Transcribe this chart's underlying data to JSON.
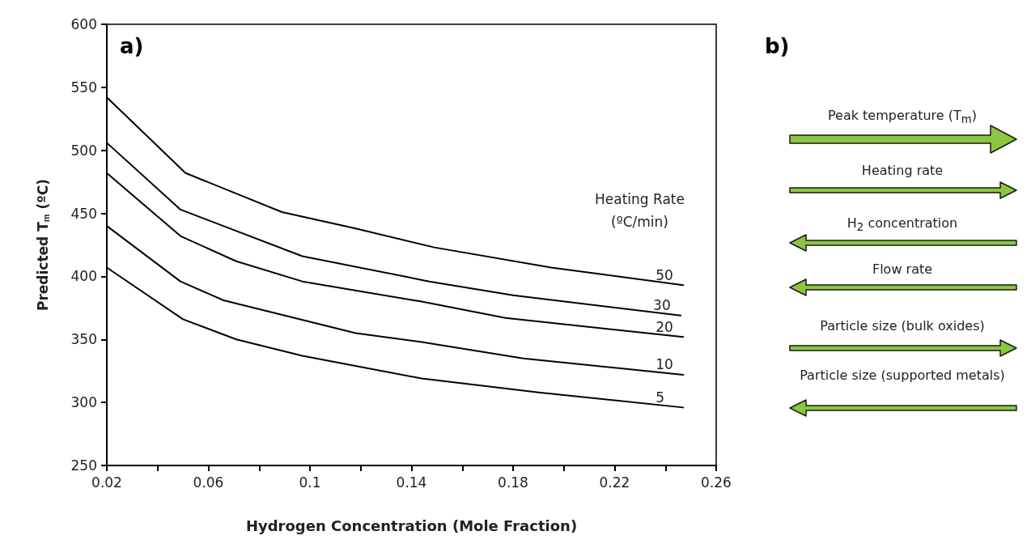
{
  "chart_data": {
    "type": "line",
    "xlabel": "Hydrogen Concentration (Mole Fraction)",
    "ylabel": "Predicted T$_{m}$ (ºC)",
    "legend_title": "Heating Rate\n(ºC/min)",
    "xlim": [
      0.02,
      0.26
    ],
    "xticks": [
      0.02,
      {
        "value": 0.04,
        "label": null
      },
      0.06,
      {
        "value": 0.08,
        "label": null
      },
      0.1,
      {
        "value": 0.12,
        "label": null
      },
      0.14,
      {
        "value": 0.16,
        "label": null
      },
      0.18,
      {
        "value": 0.2,
        "label": null
      },
      0.22,
      {
        "value": 0.24,
        "label": null
      },
      0.26
    ],
    "ylim": [
      250,
      600
    ],
    "yticks": [
      250,
      300,
      350,
      400,
      450,
      500,
      550,
      600
    ],
    "grid": false,
    "legend": false,
    "marker": "none",
    "line_style": "solid",
    "series": [
      {
        "name": "50",
        "color": "#000000",
        "x": [
          0.02,
          0.051,
          0.089,
          0.118,
          0.149,
          0.195,
          0.247
        ],
        "values": [
          542,
          482,
          451,
          438,
          423,
          407,
          393
        ]
      },
      {
        "name": "30",
        "color": "#000000",
        "x": [
          0.02,
          0.049,
          0.097,
          0.147,
          0.18,
          0.246
        ],
        "values": [
          506,
          453,
          416,
          396,
          385,
          369
        ]
      },
      {
        "name": "20",
        "color": "#000000",
        "x": [
          0.02,
          0.049,
          0.071,
          0.097,
          0.144,
          0.177,
          0.247
        ],
        "values": [
          482,
          432,
          412,
          396,
          380,
          367,
          352
        ]
      },
      {
        "name": "10",
        "color": "#000000",
        "x": [
          0.02,
          0.049,
          0.066,
          0.118,
          0.144,
          0.184,
          0.247
        ],
        "values": [
          440,
          396,
          381,
          355,
          348,
          335,
          322
        ]
      },
      {
        "name": "5",
        "color": "#000000",
        "x": [
          0.02,
          0.05,
          0.071,
          0.097,
          0.144,
          0.19,
          0.247
        ],
        "values": [
          407,
          366,
          350,
          337,
          319,
          308,
          296
        ]
      }
    ],
    "annotations": [
      "a)",
      "b)",
      "Peak temperature (T$_{m}$)",
      "Heating rate",
      "H$_{2}$ concentration",
      "Flow rate",
      "Particle size (bulk oxides)",
      "Particle size (supported metals)"
    ]
  }
}
